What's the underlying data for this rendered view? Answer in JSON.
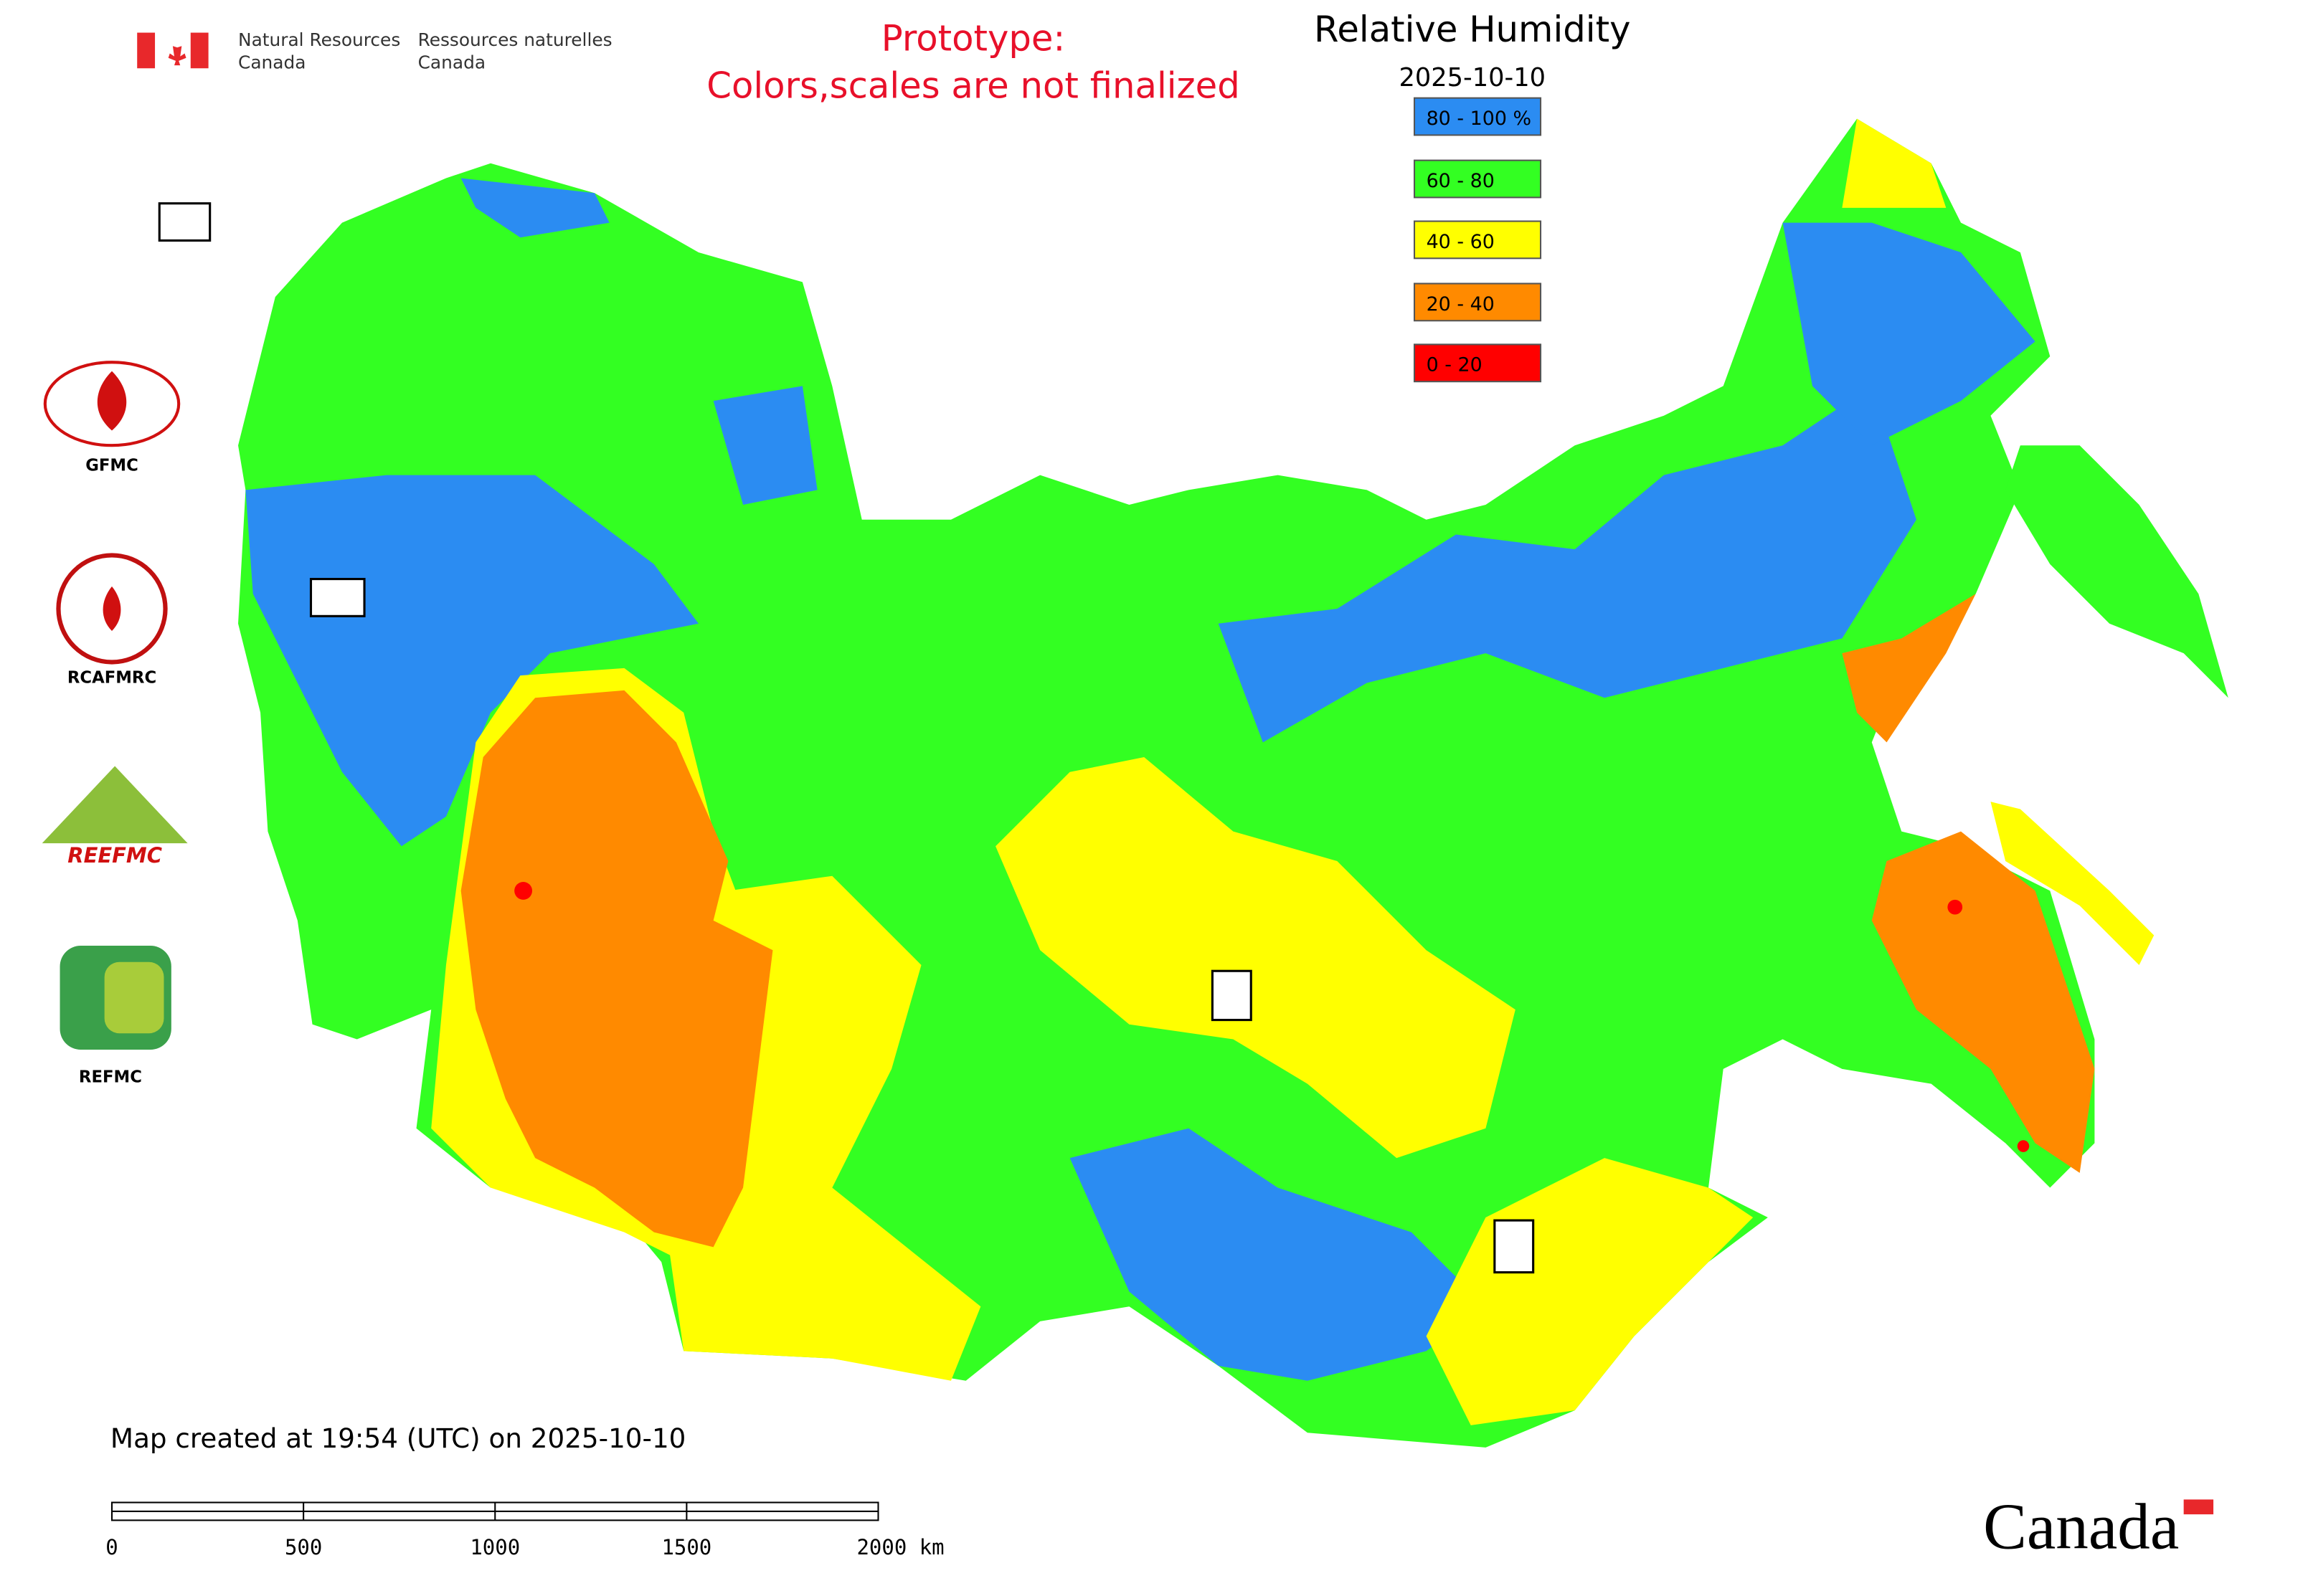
{
  "header": {
    "department_en": [
      "Natural Resources",
      "Canada"
    ],
    "department_fr": [
      "Ressources naturelles",
      "Canada"
    ],
    "prototype_note": [
      "Prototype:",
      "Colors,scales are not finalized"
    ]
  },
  "legend": {
    "title": "Relative Humidity",
    "date": "2025-10-10",
    "items": [
      {
        "label": "80 - 100 %",
        "color": "#2b8cf2"
      },
      {
        "label": "60 - 80",
        "color": "#33ff22"
      },
      {
        "label": "40 - 60",
        "color": "#ffff00"
      },
      {
        "label": "20 - 40",
        "color": "#ff8a00"
      },
      {
        "label": "0 - 20",
        "color": "#ff0000"
      }
    ]
  },
  "logos": [
    "GFMC",
    "RCAFMRC",
    "REEFMC",
    "REFMC"
  ],
  "footer": {
    "created": "Map created at 19:54 (UTC) on 2025-10-10",
    "wordmark": "Canada"
  },
  "scale_bar": {
    "labels": [
      "0",
      "500",
      "1000",
      "1500",
      "2000 km"
    ]
  }
}
